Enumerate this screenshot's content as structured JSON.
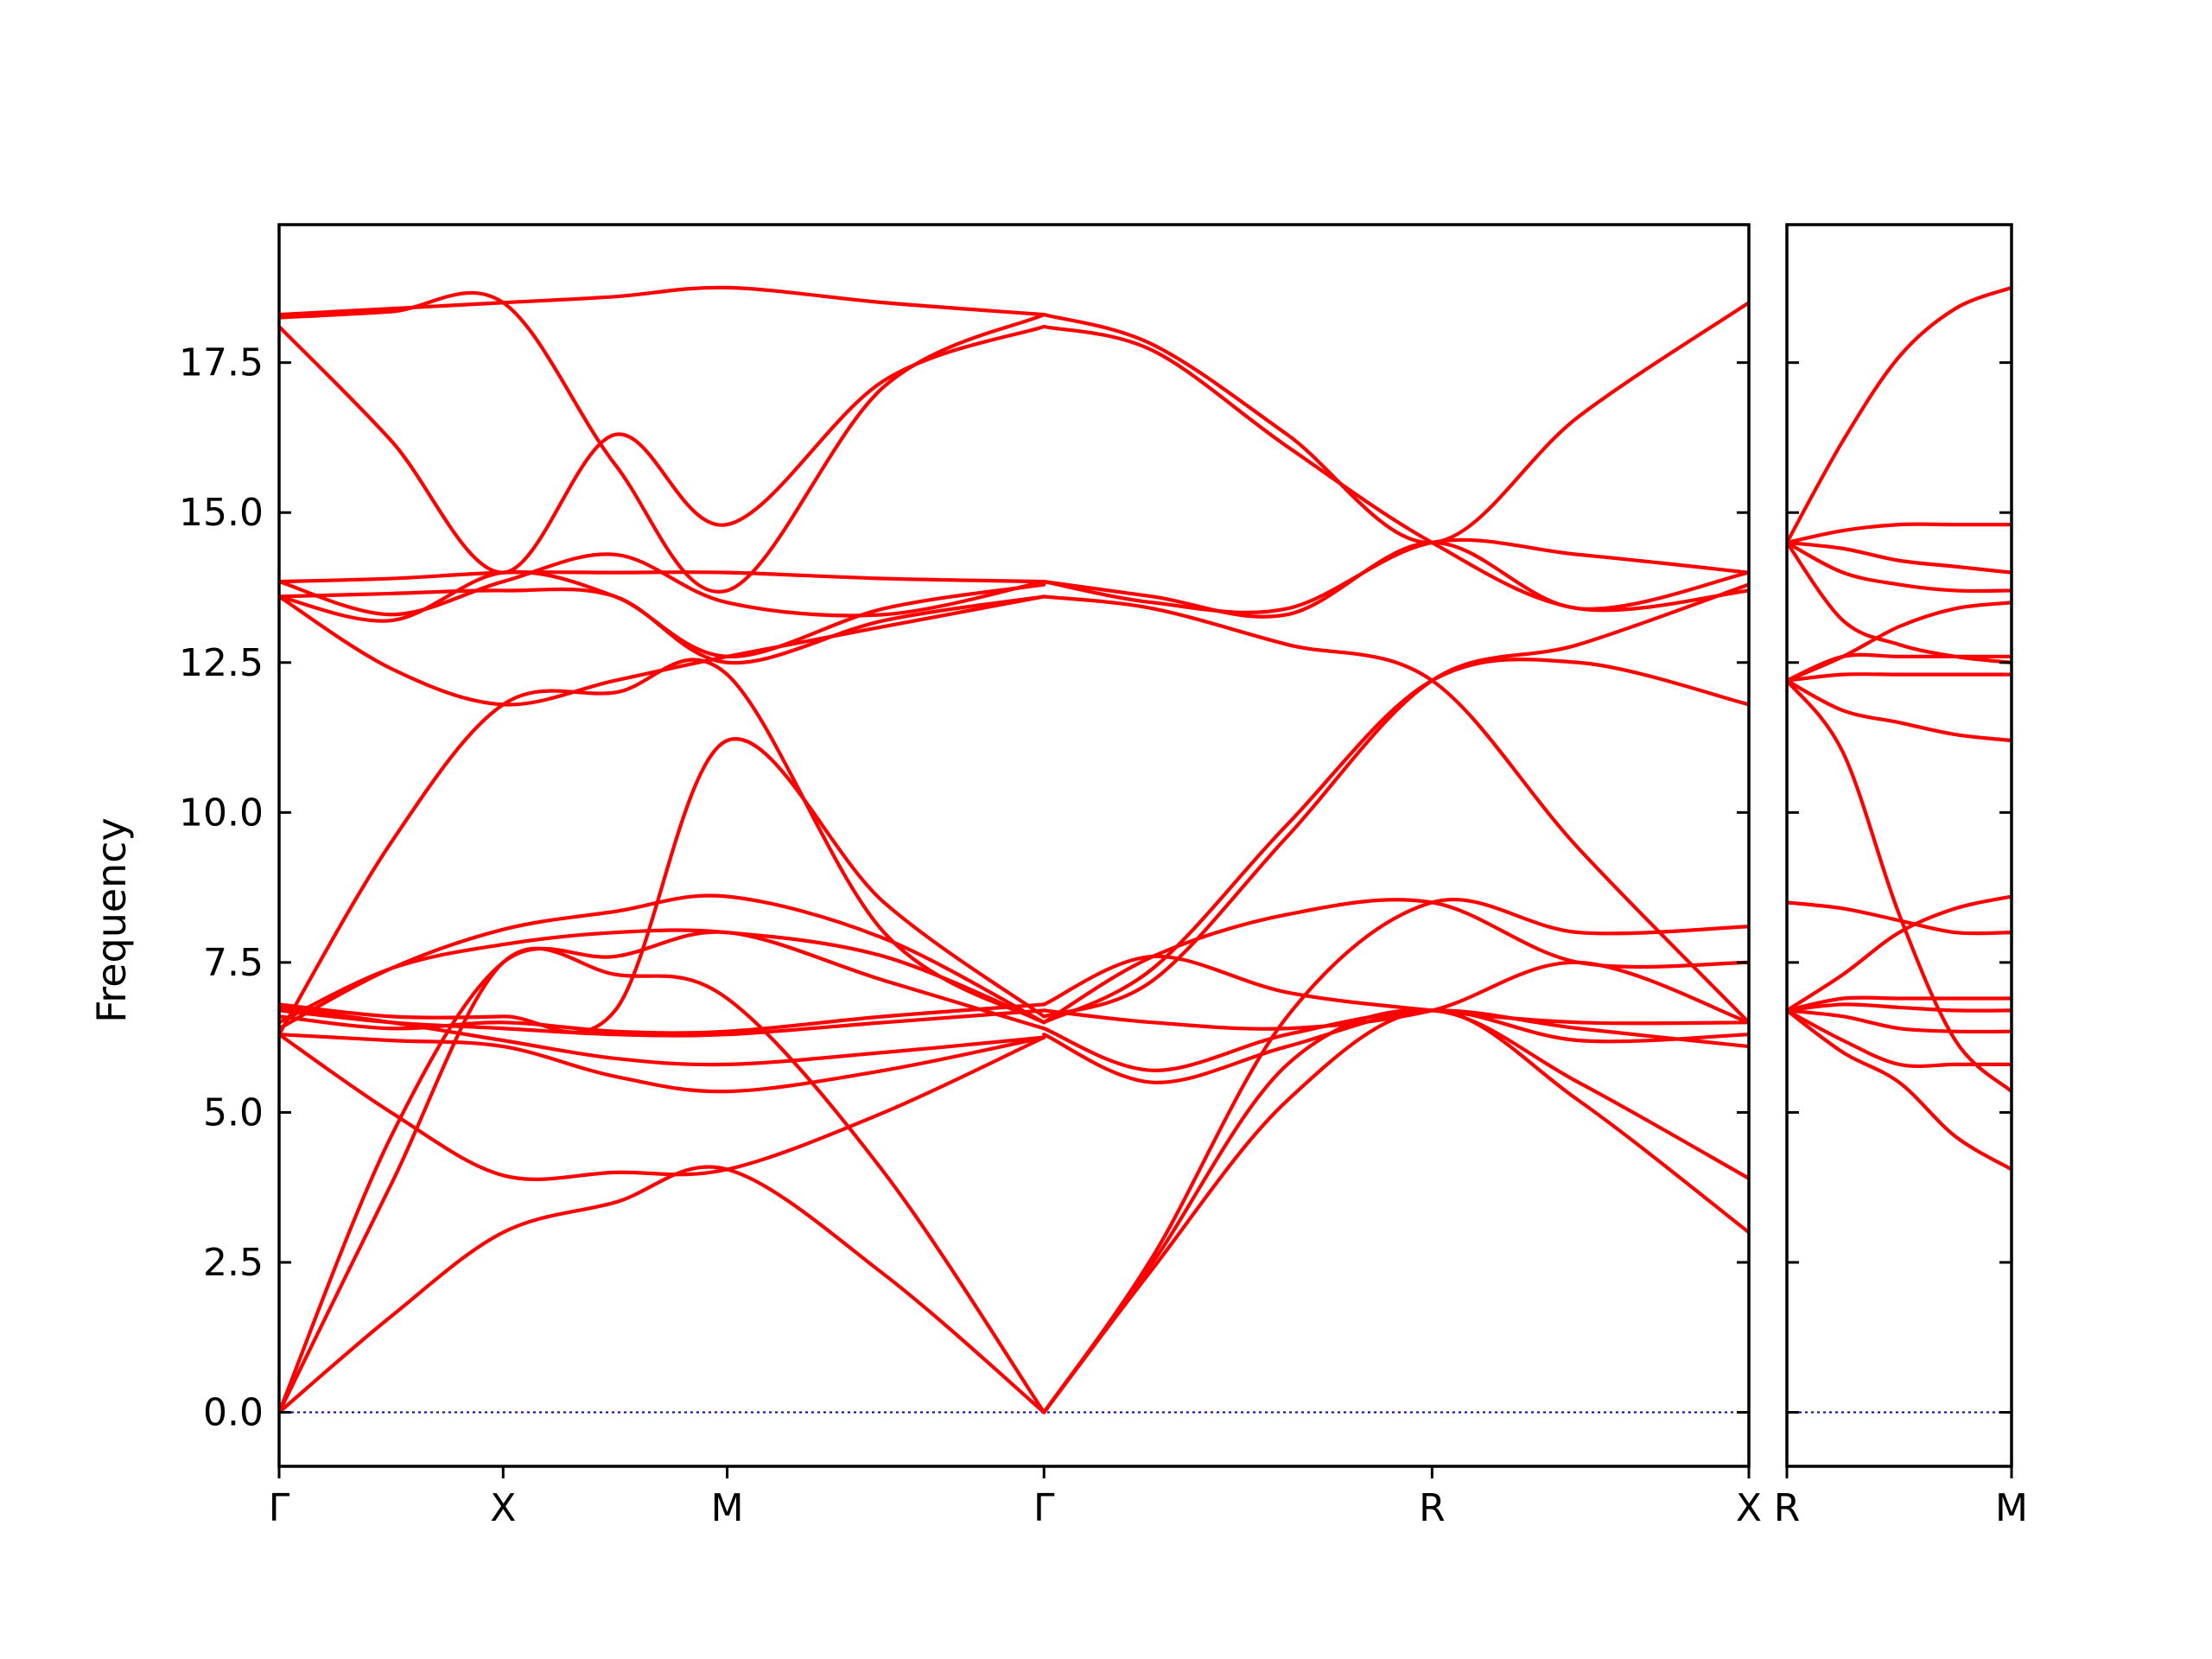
{
  "chart_data": {
    "type": "line",
    "ylabel": "Frequency",
    "ylim": [
      -0.9,
      19.8
    ],
    "yticks": [
      "0.0",
      "2.5",
      "5.0",
      "7.5",
      "10.0",
      "12.5",
      "15.0",
      "17.5"
    ],
    "ytick_values": [
      0,
      2.5,
      5,
      7.5,
      10,
      12.5,
      15,
      17.5
    ],
    "grid": false,
    "legend": "none",
    "colors": {
      "band": "#ff0000",
      "zero_line": "#0000aa"
    },
    "panels": [
      {
        "path": [
          {
            "label": "Γ",
            "x": 0
          },
          {
            "label": "X",
            "x": 1
          },
          {
            "label": "M",
            "x": 2
          },
          {
            "label": "Γ",
            "x": 3.414
          },
          {
            "label": "R",
            "x": 5.146
          },
          {
            "label": "X",
            "x": 6.56
          }
        ],
        "bands": [
          {
            "x": [
              0,
              0.5,
              1,
              1.5,
              2,
              2.7,
              3.414
            ],
            "y": [
              0,
              1.6,
              3.0,
              3.5,
              4.05,
              2.3,
              0
            ]
          },
          {
            "x": [
              0,
              0.5,
              1,
              1.5,
              2,
              2.7,
              3.414
            ],
            "y": [
              0,
              3.8,
              7.5,
              7.3,
              6.9,
              4.0,
              0
            ]
          },
          {
            "x": [
              0,
              0.5,
              1,
              1.5,
              2,
              2.7,
              3.414
            ],
            "y": [
              0,
              4.6,
              7.5,
              7.6,
              8.0,
              7.2,
              6.4
            ]
          },
          {
            "x": [
              0,
              0.5,
              1,
              1.5,
              2,
              2.7,
              3.414
            ],
            "y": [
              6.3,
              5.0,
              3.95,
              4.0,
              4.05,
              5.0,
              6.25
            ]
          },
          {
            "x": [
              0,
              0.5,
              1,
              1.5,
              2,
              2.7,
              3.414
            ],
            "y": [
              6.3,
              6.2,
              6.1,
              5.6,
              5.35,
              5.7,
              6.25
            ]
          },
          {
            "x": [
              0,
              0.5,
              1,
              1.5,
              2,
              2.7,
              3.414
            ],
            "y": [
              6.4,
              7.4,
              8.05,
              8.35,
              8.6,
              7.9,
              6.5
            ]
          },
          {
            "x": [
              0,
              0.5,
              1,
              1.5,
              2,
              2.7,
              3.414
            ],
            "y": [
              6.5,
              7.4,
              7.8,
              8.0,
              8.0,
              7.6,
              6.5
            ]
          },
          {
            "x": [
              0,
              0.5,
              1,
              1.5,
              2,
              2.7,
              3.414
            ],
            "y": [
              6.6,
              6.4,
              6.5,
              6.35,
              6.35,
              6.6,
              6.8
            ]
          },
          {
            "x": [
              0,
              0.5,
              1,
              1.5,
              2,
              2.7,
              3.414
            ],
            "y": [
              6.7,
              6.5,
              6.4,
              6.3,
              6.3,
              6.5,
              6.7
            ]
          },
          {
            "x": [
              0,
              0.5,
              1,
              1.5,
              2,
              2.7,
              3.414
            ],
            "y": [
              6.75,
              6.5,
              6.2,
              5.9,
              5.8,
              6.0,
              6.25
            ]
          },
          {
            "x": [
              0,
              0.5,
              1,
              1.5,
              2,
              2.7,
              3.414
            ],
            "y": [
              6.3,
              9.5,
              11.8,
              12.0,
              12.3,
              8.0,
              6.5
            ]
          },
          {
            "x": [
              0,
              0.5,
              1,
              1.5,
              2,
              2.7,
              3.414
            ],
            "y": [
              6.8,
              6.6,
              6.6,
              6.7,
              11.2,
              8.5,
              6.6
            ]
          },
          {
            "x": [
              0,
              0.5,
              1,
              1.5,
              2,
              2.7,
              3.414
            ],
            "y": [
              13.6,
              12.4,
              11.8,
              12.2,
              12.6,
              13.1,
              13.6
            ]
          },
          {
            "x": [
              0,
              0.5,
              1,
              1.5,
              2,
              2.7,
              3.414
            ],
            "y": [
              13.6,
              13.65,
              13.7,
              13.6,
              12.5,
              13.2,
              13.6
            ]
          },
          {
            "x": [
              0,
              0.5,
              1,
              1.5,
              2,
              2.7,
              3.414
            ],
            "y": [
              13.85,
              13.3,
              13.85,
              14.3,
              13.5,
              13.3,
              13.85
            ]
          },
          {
            "x": [
              0,
              0.5,
              1,
              1.5,
              2,
              2.7,
              3.414
            ],
            "y": [
              13.85,
              13.9,
              14.0,
              14.0,
              14.0,
              13.9,
              13.85
            ]
          },
          {
            "x": [
              0,
              0.5,
              1,
              1.5,
              2,
              2.7,
              3.414
            ],
            "y": [
              13.6,
              13.2,
              14.0,
              13.6,
              12.6,
              13.4,
              13.8
            ]
          },
          {
            "x": [
              0,
              0.5,
              1,
              1.5,
              2,
              2.7,
              3.414
            ],
            "y": [
              18.1,
              16.2,
              14.0,
              16.3,
              14.8,
              17.2,
              18.1
            ]
          },
          {
            "x": [
              0,
              0.5,
              1,
              1.5,
              2,
              2.7,
              3.414
            ],
            "y": [
              18.3,
              18.4,
              18.5,
              18.6,
              18.75,
              18.5,
              18.3
            ]
          },
          {
            "x": [
              0,
              0.5,
              1,
              1.5,
              2,
              2.7,
              3.414
            ],
            "y": [
              18.25,
              18.35,
              18.5,
              15.8,
              13.7,
              17.1,
              18.3
            ]
          },
          {
            "x": [
              3.414,
              3.9,
              4.5,
              5.146,
              5.8,
              6.56
            ],
            "y": [
              0,
              2.4,
              5.2,
              6.7,
              5.2,
              3.0
            ]
          },
          {
            "x": [
              3.414,
              3.9,
              4.5,
              5.146,
              5.8,
              6.56
            ],
            "y": [
              0,
              2.5,
              5.8,
              6.7,
              5.5,
              3.9
            ]
          },
          {
            "x": [
              3.414,
              3.9,
              4.5,
              5.146,
              5.8,
              6.56
            ],
            "y": [
              0,
              2.6,
              6.6,
              8.5,
              8.0,
              8.1
            ]
          },
          {
            "x": [
              3.414,
              3.9,
              4.5,
              5.146,
              5.8,
              6.56
            ],
            "y": [
              6.3,
              5.5,
              6.1,
              6.7,
              6.2,
              6.3
            ]
          },
          {
            "x": [
              3.414,
              3.9,
              4.5,
              5.146,
              5.8,
              6.56
            ],
            "y": [
              6.4,
              5.7,
              6.3,
              6.7,
              6.4,
              6.1
            ]
          },
          {
            "x": [
              3.414,
              3.9,
              4.5,
              5.146,
              5.8,
              6.56
            ],
            "y": [
              6.5,
              7.6,
              8.3,
              8.5,
              7.5,
              7.5
            ]
          },
          {
            "x": [
              3.414,
              3.9,
              4.5,
              5.146,
              5.8,
              6.56
            ],
            "y": [
              6.7,
              6.5,
              6.4,
              6.7,
              7.5,
              6.5
            ]
          },
          {
            "x": [
              3.414,
              3.9,
              4.5,
              5.146,
              5.8,
              6.56
            ],
            "y": [
              6.8,
              7.6,
              7.0,
              6.7,
              6.5,
              6.5
            ]
          },
          {
            "x": [
              3.414,
              3.9,
              4.5,
              5.146,
              5.8,
              6.56
            ],
            "y": [
              6.5,
              7.4,
              9.8,
              12.2,
              12.5,
              11.8
            ]
          },
          {
            "x": [
              3.414,
              3.9,
              4.5,
              5.146,
              5.8,
              6.56
            ],
            "y": [
              6.6,
              7.2,
              9.6,
              12.2,
              12.8,
              13.8
            ]
          },
          {
            "x": [
              3.414,
              3.9,
              4.5,
              5.146,
              5.8,
              6.56
            ],
            "y": [
              13.6,
              13.4,
              12.8,
              12.2,
              9.4,
              6.5
            ]
          },
          {
            "x": [
              3.414,
              3.9,
              4.5,
              5.146,
              5.8,
              6.56
            ],
            "y": [
              13.85,
              13.5,
              13.4,
              14.5,
              14.3,
              14.0
            ]
          },
          {
            "x": [
              3.414,
              3.9,
              4.5,
              5.146,
              5.8,
              6.56
            ],
            "y": [
              13.85,
              13.6,
              13.3,
              14.5,
              13.4,
              14.0
            ]
          },
          {
            "x": [
              3.414,
              3.9,
              4.5,
              5.146,
              5.8,
              6.56
            ],
            "y": [
              18.3,
              17.8,
              16.3,
              14.5,
              16.6,
              18.5
            ]
          },
          {
            "x": [
              3.414,
              3.9,
              4.5,
              5.146,
              5.8,
              6.56
            ],
            "y": [
              18.1,
              17.7,
              16.1,
              14.5,
              13.4,
              13.7
            ]
          }
        ]
      },
      {
        "path": [
          {
            "label": "R",
            "x": 0
          },
          {
            "label": "M",
            "x": 1
          }
        ],
        "bands": [
          {
            "x": [
              0,
              0.25,
              0.5,
              0.75,
              1
            ],
            "y": [
              6.7,
              6.0,
              5.5,
              4.6,
              4.05
            ]
          },
          {
            "x": [
              0,
              0.25,
              0.5,
              0.75,
              1
            ],
            "y": [
              6.7,
              6.2,
              5.8,
              5.8,
              5.8
            ]
          },
          {
            "x": [
              0,
              0.25,
              0.5,
              0.75,
              1
            ],
            "y": [
              6.7,
              6.6,
              6.4,
              6.35,
              6.35
            ]
          },
          {
            "x": [
              0,
              0.25,
              0.5,
              0.75,
              1
            ],
            "y": [
              6.7,
              6.8,
              6.75,
              6.7,
              6.7
            ]
          },
          {
            "x": [
              0,
              0.25,
              0.5,
              0.75,
              1
            ],
            "y": [
              6.7,
              6.9,
              6.9,
              6.9,
              6.9
            ]
          },
          {
            "x": [
              0,
              0.25,
              0.5,
              0.75,
              1
            ],
            "y": [
              6.7,
              7.3,
              8.0,
              8.4,
              8.6
            ]
          },
          {
            "x": [
              0,
              0.25,
              0.5,
              0.75,
              1
            ],
            "y": [
              8.5,
              8.4,
              8.2,
              8.0,
              8.0
            ]
          },
          {
            "x": [
              0,
              0.25,
              0.5,
              0.75,
              1
            ],
            "y": [
              12.2,
              11.0,
              8.3,
              6.2,
              5.35
            ]
          },
          {
            "x": [
              0,
              0.25,
              0.5,
              0.75,
              1
            ],
            "y": [
              12.2,
              11.7,
              11.5,
              11.3,
              11.2
            ]
          },
          {
            "x": [
              0,
              0.25,
              0.5,
              0.75,
              1
            ],
            "y": [
              12.2,
              12.3,
              12.3,
              12.3,
              12.3
            ]
          },
          {
            "x": [
              0,
              0.25,
              0.5,
              0.75,
              1
            ],
            "y": [
              12.2,
              12.6,
              12.6,
              12.6,
              12.6
            ]
          },
          {
            "x": [
              0,
              0.25,
              0.5,
              0.75,
              1
            ],
            "y": [
              12.2,
              12.6,
              13.1,
              13.4,
              13.5
            ]
          },
          {
            "x": [
              0,
              0.25,
              0.5,
              0.75,
              1
            ],
            "y": [
              14.5,
              13.2,
              12.8,
              12.6,
              12.5
            ]
          },
          {
            "x": [
              0,
              0.25,
              0.5,
              0.75,
              1
            ],
            "y": [
              14.5,
              14.0,
              13.8,
              13.7,
              13.7
            ]
          },
          {
            "x": [
              0,
              0.25,
              0.5,
              0.75,
              1
            ],
            "y": [
              14.5,
              14.4,
              14.2,
              14.1,
              14.0
            ]
          },
          {
            "x": [
              0,
              0.25,
              0.5,
              0.75,
              1
            ],
            "y": [
              14.5,
              14.7,
              14.8,
              14.8,
              14.8
            ]
          },
          {
            "x": [
              0,
              0.25,
              0.5,
              0.75,
              1
            ],
            "y": [
              14.5,
              16.2,
              17.6,
              18.4,
              18.75
            ]
          }
        ]
      }
    ]
  }
}
